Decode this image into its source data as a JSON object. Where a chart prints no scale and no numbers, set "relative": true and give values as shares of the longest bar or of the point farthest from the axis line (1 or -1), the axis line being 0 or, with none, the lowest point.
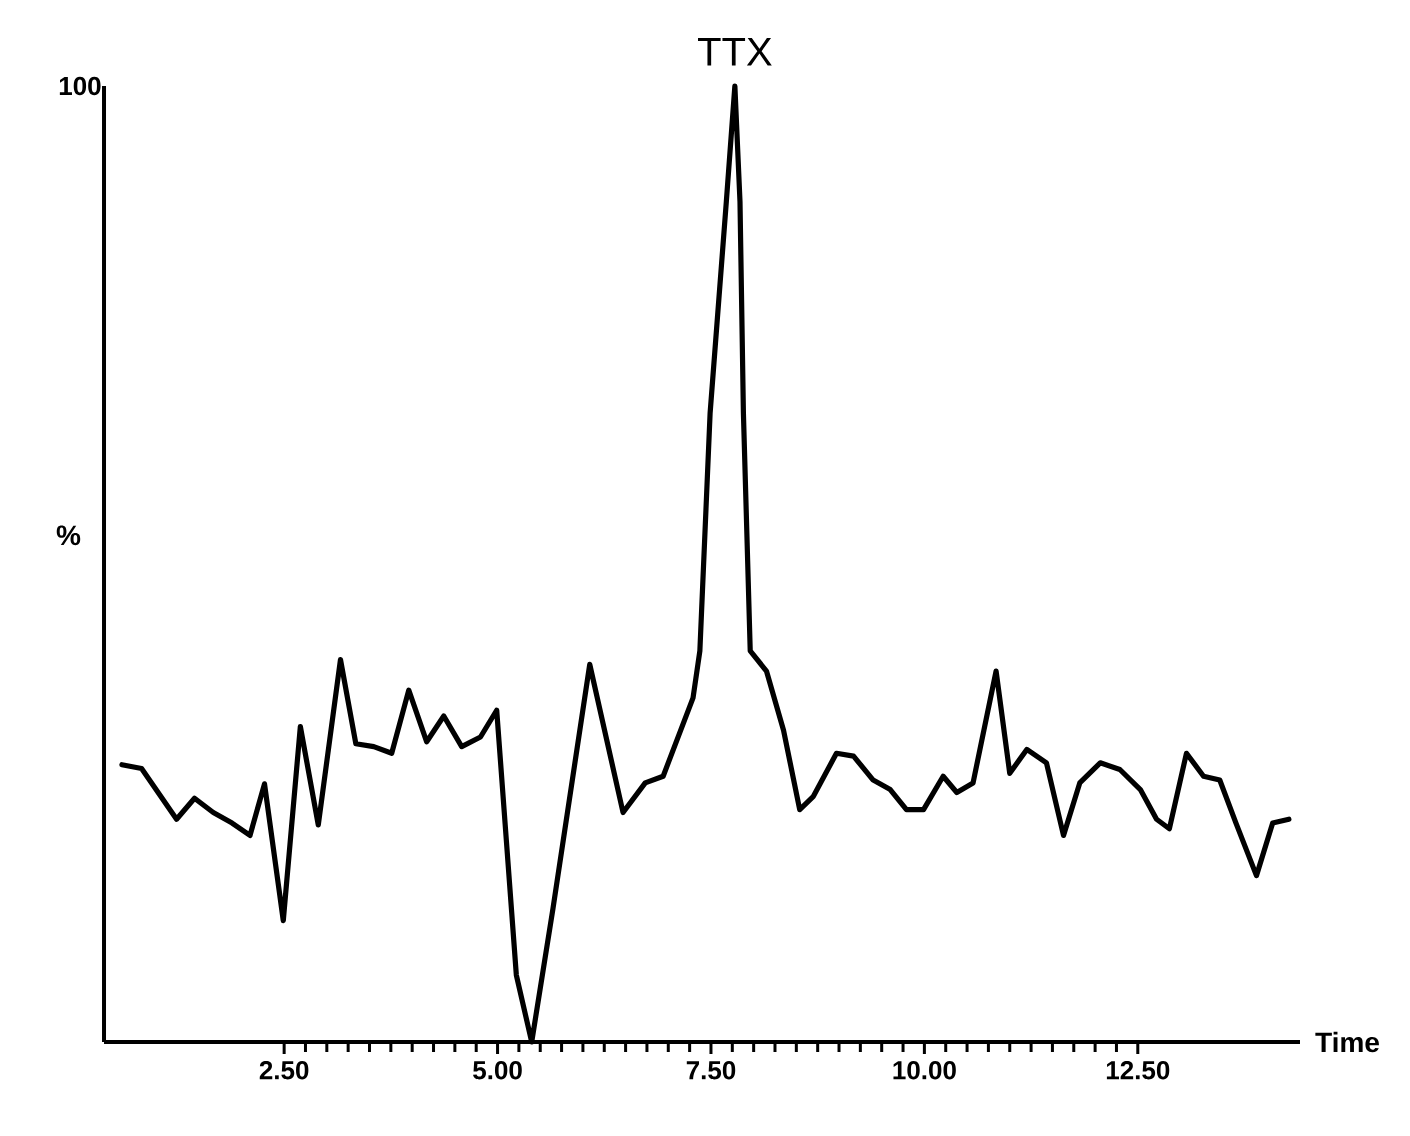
{
  "chart_data": {
    "type": "line",
    "relative": true,
    "xlabel": "Time",
    "ylabel": "%",
    "xlim": [
      0.39,
      14.4
    ],
    "xticks": [
      {
        "value": 2.5,
        "label": "2.50"
      },
      {
        "value": 5.0,
        "label": "5.00"
      },
      {
        "value": 7.5,
        "label": "7.50"
      },
      {
        "value": 10.0,
        "label": "10.00"
      },
      {
        "value": 12.5,
        "label": "12.50"
      }
    ],
    "annotations": [
      "100",
      {
        "text": "TTX",
        "x": 7.78,
        "y": 1.0
      }
    ],
    "grid": false,
    "marker": "none",
    "line_style": "solid",
    "series": [
      {
        "color": "#000000",
        "x": [
          0.6,
          0.83,
          1.24,
          1.45,
          1.67,
          1.89,
          2.1,
          2.27,
          2.49,
          2.69,
          2.9,
          3.16,
          3.34,
          3.55,
          3.76,
          3.96,
          4.17,
          4.37,
          4.58,
          4.8,
          4.99,
          5.22,
          5.4,
          5.65,
          6.08,
          6.47,
          6.73,
          6.94,
          7.29,
          7.37,
          7.49,
          7.68,
          7.78,
          7.84,
          7.88,
          7.96,
          8.15,
          8.35,
          8.54,
          8.7,
          8.97,
          9.17,
          9.4,
          9.6,
          9.79,
          9.99,
          10.22,
          10.38,
          10.57,
          10.84,
          11.0,
          11.2,
          11.43,
          11.63,
          11.82,
          12.06,
          12.29,
          12.53,
          12.72,
          12.87,
          13.07,
          13.27,
          13.46,
          13.65,
          13.89,
          14.08,
          14.27
        ],
        "values": [
          0.29,
          0.286,
          0.233,
          0.255,
          0.24,
          0.229,
          0.216,
          0.27,
          0.127,
          0.33,
          0.227,
          0.4,
          0.312,
          0.309,
          0.302,
          0.368,
          0.314,
          0.341,
          0.309,
          0.319,
          0.347,
          0.07,
          0.0,
          0.14,
          0.395,
          0.24,
          0.271,
          0.278,
          0.36,
          0.409,
          0.658,
          0.879,
          1.0,
          0.879,
          0.658,
          0.409,
          0.388,
          0.326,
          0.243,
          0.257,
          0.302,
          0.299,
          0.274,
          0.264,
          0.243,
          0.243,
          0.278,
          0.261,
          0.271,
          0.388,
          0.281,
          0.306,
          0.292,
          0.216,
          0.271,
          0.292,
          0.285,
          0.264,
          0.233,
          0.223,
          0.302,
          0.278,
          0.274,
          0.229,
          0.174,
          0.229,
          0.233
        ]
      }
    ]
  }
}
